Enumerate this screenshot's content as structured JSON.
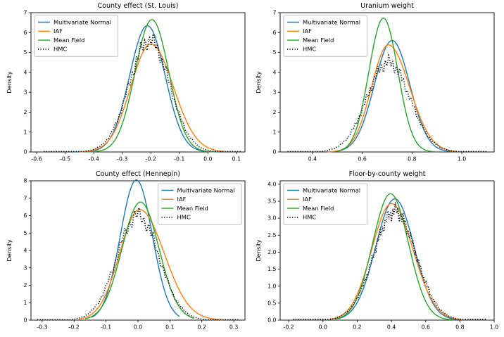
{
  "figure": {
    "background": "#ffffff",
    "rows": 2,
    "cols": 2
  },
  "palette": {
    "multivariate_normal": "#1f77b4",
    "iaf": "#ff7f0e",
    "mean_field": "#2ca02c",
    "hmc": "#000000",
    "legend_border": "#b3b3b3",
    "axes": "#000000"
  },
  "chart_data": [
    {
      "type": "line",
      "title": "County effect (St. Louis)",
      "xlabel": "",
      "ylabel": "Density",
      "xlim": [
        -0.62,
        0.13
      ],
      "ylim": [
        0,
        7
      ],
      "xticks": [
        "-0.6",
        "-0.5",
        "-0.4",
        "-0.3",
        "-0.2",
        "-0.1",
        "0.0",
        "0.1"
      ],
      "yticks": [
        "0",
        "1",
        "2",
        "3",
        "4",
        "5",
        "6",
        "7"
      ],
      "grid": false,
      "legend_position": "upper-left",
      "series": [
        {
          "name": "Multivariate Normal",
          "color": "#1f77b4",
          "line_style": "solid",
          "mean": -0.212,
          "std": 0.062,
          "peak_density": 6.35,
          "peak_x": -0.212,
          "peak_y": 6.35,
          "x_range": [
            -0.47,
            0.045
          ],
          "noisy": false
        },
        {
          "name": "IAF",
          "color": "#ff7f0e",
          "line_style": "solid",
          "mean": -0.2,
          "std": 0.07,
          "std_right": 0.079,
          "peak_density": 5.42,
          "peak_x": -0.2,
          "peak_y": 5.42,
          "x_range": [
            -0.45,
            0.06
          ],
          "noisy": false
        },
        {
          "name": "Mean Field",
          "color": "#2ca02c",
          "line_style": "solid",
          "mean": -0.196,
          "std": 0.059,
          "peak_density": 6.65,
          "peak_x": -0.196,
          "peak_y": 6.65,
          "x_range": [
            -0.43,
            0.03
          ],
          "noisy": false
        },
        {
          "name": "HMC",
          "color": "#000000",
          "line_style": "dotted",
          "mean": -0.205,
          "std": 0.071,
          "peak_density": 5.6,
          "peak_x": -0.205,
          "peak_y": 5.6,
          "x_range": [
            -0.575,
            0.115
          ],
          "noisy": true
        }
      ]
    },
    {
      "type": "line",
      "title": "Uranium weight",
      "xlabel": "",
      "ylabel": "Density",
      "xlim": [
        0.27,
        1.13
      ],
      "ylim": [
        0,
        7
      ],
      "xticks": [
        "0.4",
        "0.6",
        "0.8",
        "1.0"
      ],
      "yticks": [
        "0",
        "1",
        "2",
        "3",
        "4",
        "5",
        "6",
        "7"
      ],
      "grid": false,
      "legend_position": "upper-left",
      "series": [
        {
          "name": "Multivariate Normal",
          "color": "#1f77b4",
          "line_style": "solid",
          "mean": 0.72,
          "std": 0.071,
          "peak_density": 5.6,
          "peak_x": 0.72,
          "peak_y": 5.6,
          "x_range": [
            0.49,
            0.96
          ],
          "noisy": false
        },
        {
          "name": "IAF",
          "color": "#ff7f0e",
          "line_style": "solid",
          "mean": 0.705,
          "std": 0.068,
          "std_right": 0.085,
          "peak_density": 5.38,
          "peak_x": 0.705,
          "peak_y": 5.38,
          "x_range": [
            0.46,
            0.98
          ],
          "noisy": false
        },
        {
          "name": "Mean Field",
          "color": "#2ca02c",
          "line_style": "solid",
          "mean": 0.685,
          "std": 0.058,
          "peak_density": 6.72,
          "peak_x": 0.685,
          "peak_y": 6.72,
          "x_range": [
            0.5,
            0.89
          ],
          "noisy": false
        },
        {
          "name": "HMC",
          "color": "#000000",
          "line_style": "dotted",
          "mean": 0.705,
          "std": 0.086,
          "peak_density": 4.5,
          "peak_x": 0.705,
          "peak_y": 4.5,
          "x_range": [
            0.3,
            1.105
          ],
          "noisy": true
        }
      ]
    },
    {
      "type": "line",
      "title": "County effect (Hennepin)",
      "xlabel": "",
      "ylabel": "Density",
      "xlim": [
        -0.335,
        0.335
      ],
      "ylim": [
        0,
        8
      ],
      "xticks": [
        "-0.3",
        "-0.2",
        "-0.1",
        "0.0",
        "0.1",
        "0.2",
        "0.3"
      ],
      "yticks": [
        "0",
        "1",
        "2",
        "3",
        "4",
        "5",
        "6",
        "7",
        "8"
      ],
      "grid": false,
      "legend_position": "upper-right",
      "series": [
        {
          "name": "Multivariate Normal",
          "color": "#1f77b4",
          "line_style": "solid",
          "mean": -0.005,
          "std": 0.05,
          "peak_density": 8.05,
          "peak_x": -0.005,
          "peak_y": 8.05,
          "x_range": [
            -0.145,
            0.13
          ],
          "noisy": false
        },
        {
          "name": "IAF",
          "color": "#ff7f0e",
          "line_style": "solid",
          "mean": 0.005,
          "std": 0.062,
          "std_right": 0.077,
          "peak_density": 6.35,
          "peak_x": 0.005,
          "peak_y": 6.35,
          "x_range": [
            -0.185,
            0.265
          ],
          "noisy": false
        },
        {
          "name": "Mean Field",
          "color": "#2ca02c",
          "line_style": "solid",
          "mean": 0.008,
          "std": 0.058,
          "peak_density": 6.78,
          "peak_x": 0.008,
          "peak_y": 6.78,
          "x_range": [
            -0.165,
            0.175
          ],
          "noisy": false
        },
        {
          "name": "HMC",
          "color": "#000000",
          "line_style": "dotted",
          "mean": 0.0,
          "std": 0.066,
          "peak_density": 6.0,
          "peak_x": 0.0,
          "peak_y": 6.0,
          "x_range": [
            -0.315,
            0.315
          ],
          "noisy": true
        }
      ]
    },
    {
      "type": "line",
      "title": "Floor-by-county weight",
      "xlabel": "",
      "ylabel": "Density",
      "xlim": [
        -0.25,
        1.0
      ],
      "ylim": [
        0,
        4.1
      ],
      "xticks": [
        "-0.2",
        "0.0",
        "0.2",
        "0.4",
        "0.6",
        "0.8",
        "1.0"
      ],
      "yticks": [
        "0.0",
        "0.5",
        "1.0",
        "1.5",
        "2.0",
        "2.5",
        "3.0",
        "3.5",
        "4.0"
      ],
      "grid": false,
      "legend_position": "upper-left",
      "series": [
        {
          "name": "Multivariate Normal",
          "color": "#1f77b4",
          "line_style": "solid",
          "mean": 0.42,
          "std": 0.112,
          "peak_density": 3.57,
          "peak_x": 0.42,
          "peak_y": 3.57,
          "x_range": [
            0.09,
            0.79
          ],
          "noisy": false
        },
        {
          "name": "IAF",
          "color": "#ff7f0e",
          "line_style": "solid",
          "mean": 0.4,
          "std": 0.115,
          "std_right": 0.126,
          "peak_density": 3.43,
          "peak_x": 0.4,
          "peak_y": 3.43,
          "x_range": [
            0.04,
            0.81
          ],
          "noisy": false
        },
        {
          "name": "Mean Field",
          "color": "#2ca02c",
          "line_style": "solid",
          "mean": 0.395,
          "std": 0.105,
          "peak_density": 3.72,
          "peak_x": 0.395,
          "peak_y": 3.72,
          "x_range": [
            0.07,
            0.76
          ],
          "noisy": false
        },
        {
          "name": "HMC",
          "color": "#000000",
          "line_style": "dotted",
          "mean": 0.42,
          "std": 0.123,
          "peak_density": 3.2,
          "peak_x": 0.42,
          "peak_y": 3.2,
          "x_range": [
            -0.175,
            0.955
          ],
          "noisy": true
        }
      ]
    }
  ]
}
